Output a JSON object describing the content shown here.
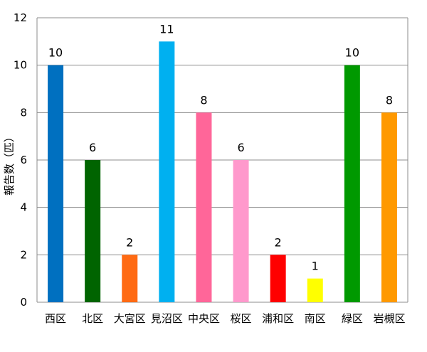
{
  "chart_data": {
    "type": "bar",
    "title": "",
    "xlabel": "",
    "ylabel": "報告数（匹）",
    "ylim": [
      0,
      12
    ],
    "yticks": [
      0,
      2,
      4,
      6,
      8,
      10,
      12
    ],
    "grid": true,
    "legend": "none",
    "categories": [
      "西区",
      "北区",
      "大宮区",
      "見沼区",
      "中央区",
      "桜区",
      "浦和区",
      "南区",
      "緑区",
      "岩槻区"
    ],
    "values": [
      10,
      6,
      2,
      11,
      8,
      6,
      2,
      1,
      10,
      8
    ],
    "colors": [
      "#0070c0",
      "#006400",
      "#ff6a13",
      "#00b0f0",
      "#ff6699",
      "#ff99cc",
      "#ff0000",
      "#ffff00",
      "#009900",
      "#ff9900"
    ]
  }
}
